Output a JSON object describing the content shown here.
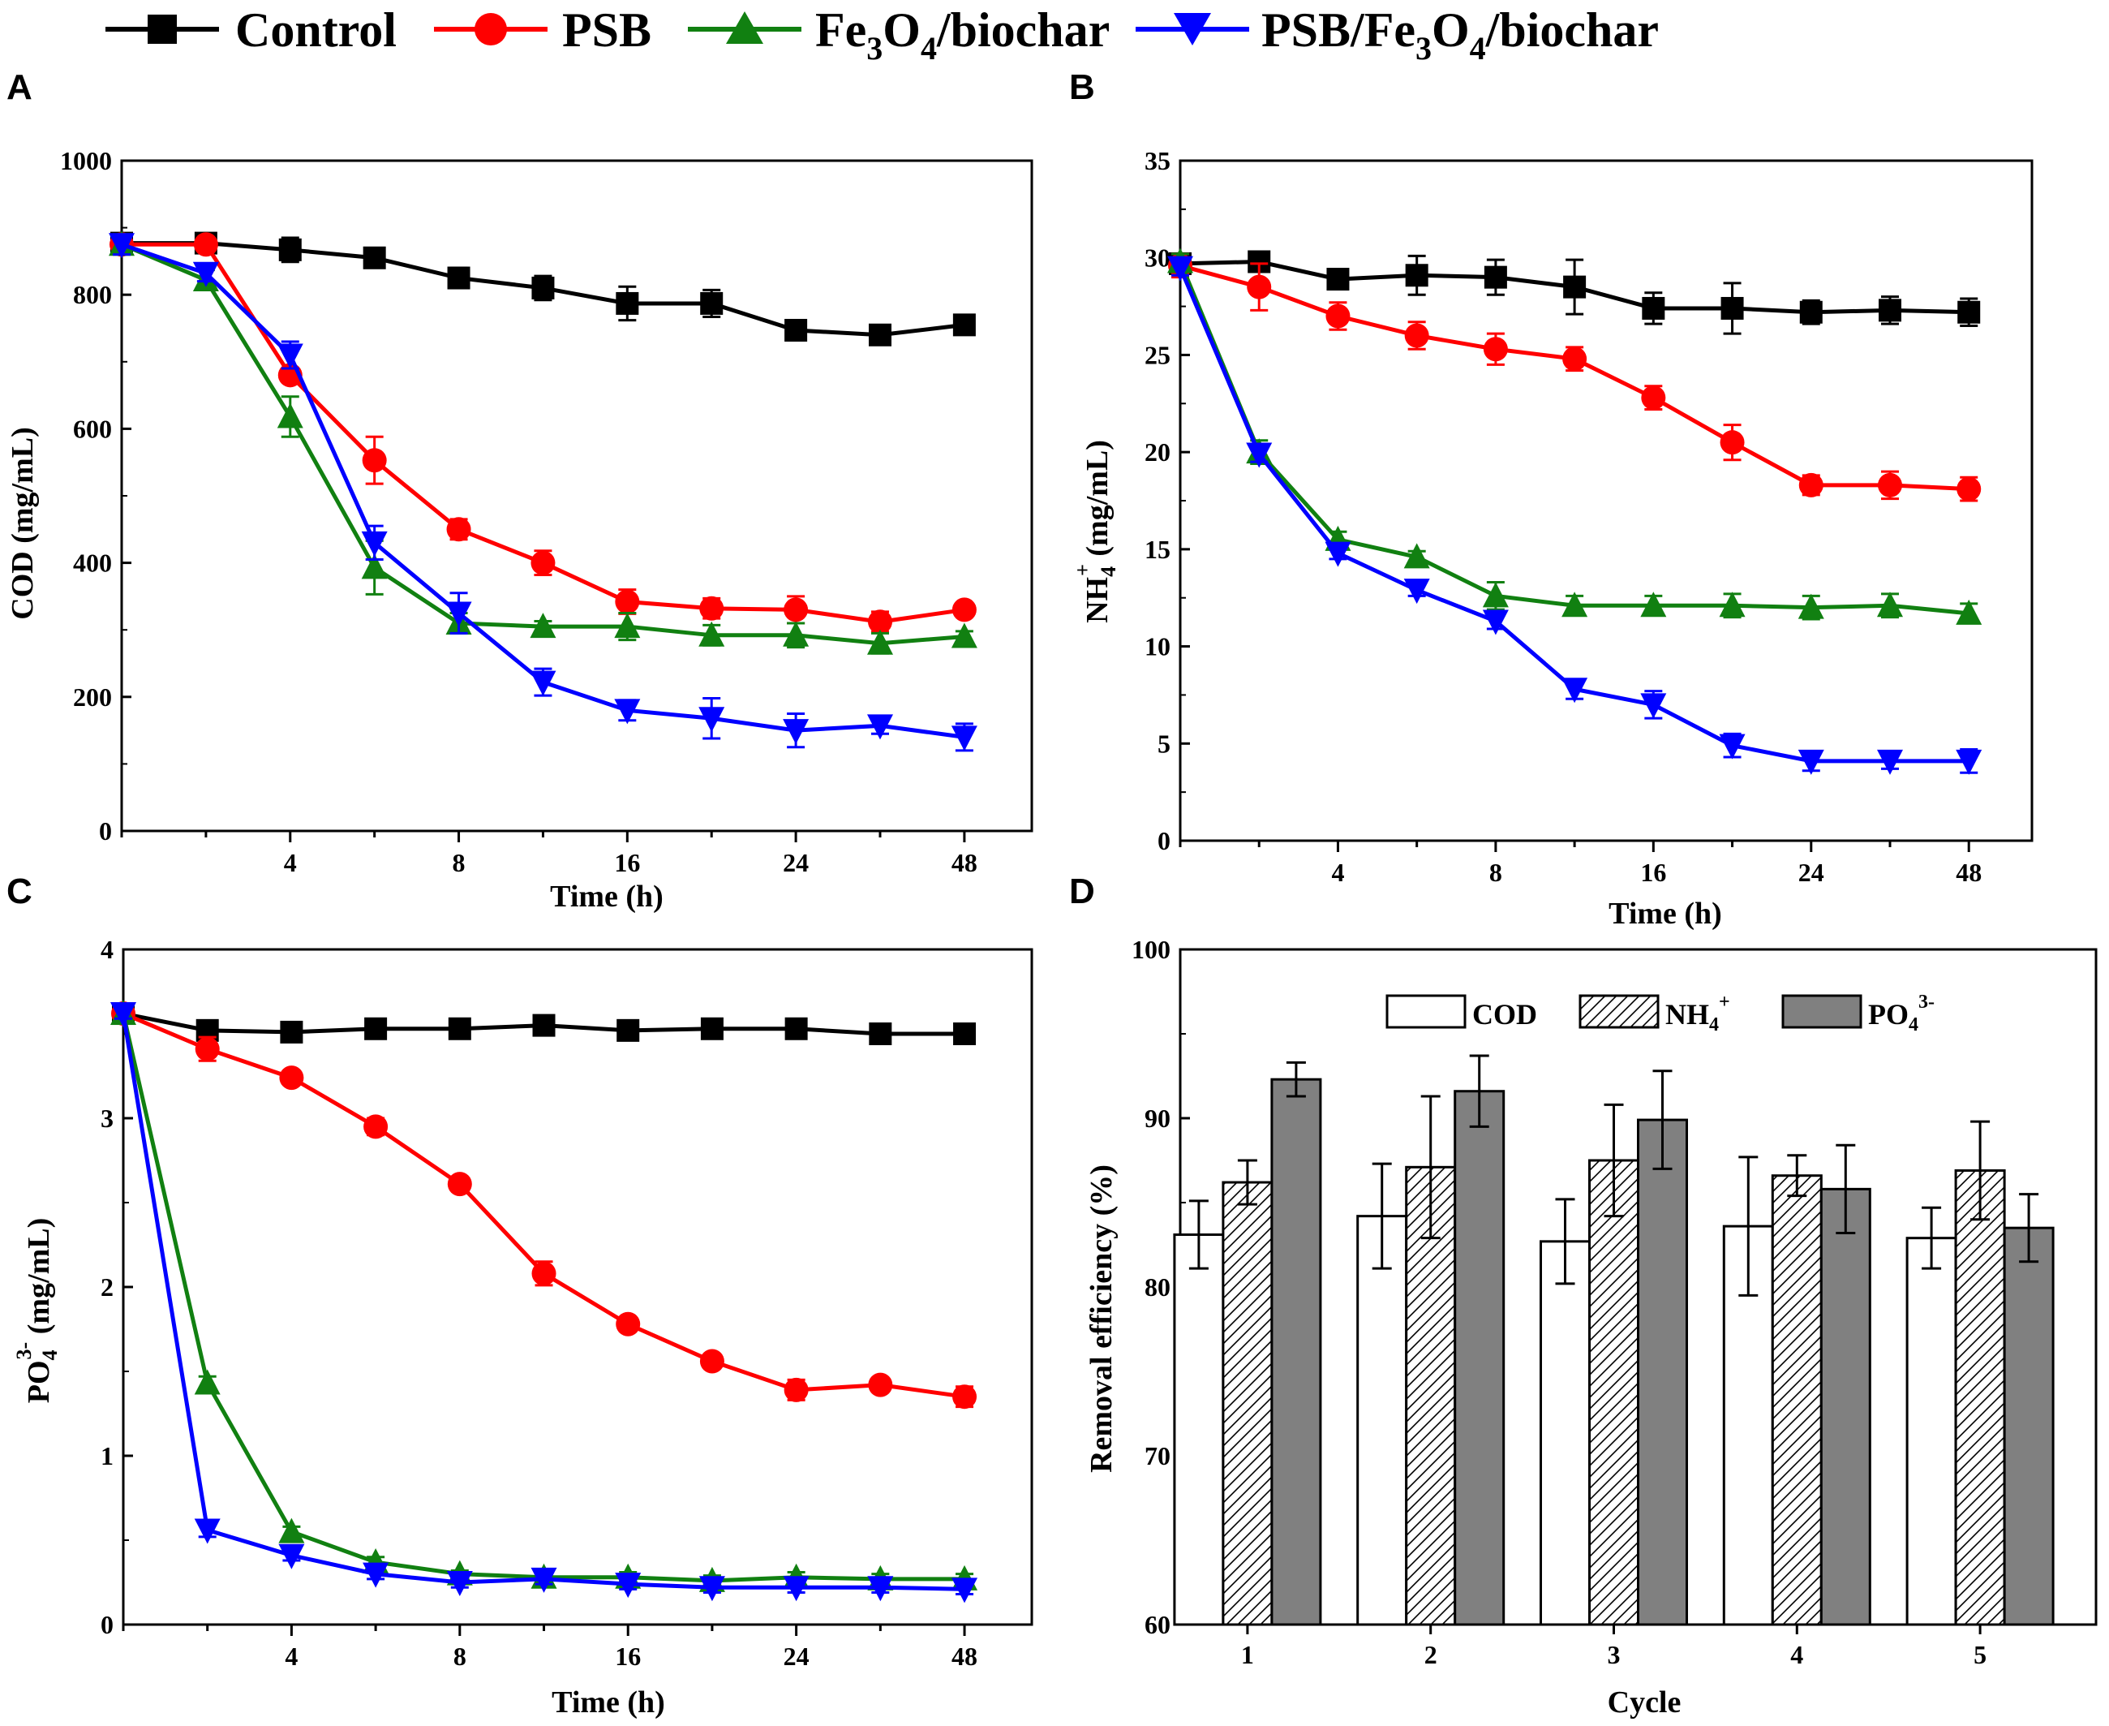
{
  "legend": {
    "series": [
      {
        "key": "control",
        "name": "Control",
        "color": "#000000",
        "marker": "square"
      },
      {
        "key": "psb",
        "name": "PSB",
        "color": "#ff0000",
        "marker": "circle"
      },
      {
        "key": "fe",
        "name": "Fe3O4/biochar",
        "main": "Fe",
        "sub1": "3",
        "mid": "O",
        "sub2": "4",
        "tail": "/biochar",
        "color": "#118011",
        "marker": "triangle-up"
      },
      {
        "key": "psbfe",
        "name": "PSB/Fe3O4/biochar",
        "main": "PSB/Fe",
        "sub1": "3",
        "mid": "O",
        "sub2": "4",
        "tail": "/biochar",
        "color": "#0000ff",
        "marker": "triangle-down"
      }
    ]
  },
  "chart_data": [
    {
      "panel": "A",
      "type": "line",
      "xlabel": "Time (h)",
      "ylabel": "COD (mg/mL)",
      "ylim": [
        0,
        1000
      ],
      "yticks": [
        0,
        200,
        400,
        600,
        800,
        1000
      ],
      "x": [
        0,
        2,
        4,
        6,
        8,
        12,
        16,
        20,
        24,
        30,
        48
      ],
      "xtick_labels": [
        "4",
        "8",
        "16",
        "24",
        "48"
      ],
      "xtick_positions": [
        2,
        4,
        6,
        8,
        10
      ],
      "series": [
        {
          "key": "control",
          "values": [
            877,
            877,
            867,
            855,
            825,
            810,
            787,
            787,
            747,
            740,
            755
          ],
          "errors": [
            12,
            12,
            18,
            10,
            15,
            18,
            25,
            20,
            15,
            12,
            10
          ]
        },
        {
          "key": "psb",
          "values": [
            875,
            875,
            680,
            553,
            450,
            400,
            342,
            332,
            330,
            312,
            330
          ],
          "errors": [
            10,
            10,
            10,
            35,
            15,
            18,
            18,
            15,
            20,
            15,
            8
          ]
        },
        {
          "key": "fe",
          "values": [
            875,
            822,
            618,
            393,
            310,
            305,
            305,
            292,
            292,
            280,
            290
          ],
          "errors": [
            15,
            15,
            30,
            40,
            15,
            8,
            20,
            15,
            18,
            15,
            8
          ]
        },
        {
          "key": "psbfe",
          "values": [
            875,
            832,
            710,
            430,
            325,
            222,
            180,
            168,
            150,
            157,
            140
          ],
          "errors": [
            15,
            12,
            20,
            25,
            30,
            20,
            15,
            30,
            25,
            12,
            20
          ]
        }
      ]
    },
    {
      "panel": "B",
      "type": "line",
      "xlabel": "Time (h)",
      "ylabel": "NH4+ (mg/mL)",
      "ylabel_main": "NH",
      "ylabel_sub": "4",
      "ylabel_sup": "+",
      "ylabel_tail": " (mg/mL)",
      "ylim": [
        0,
        35
      ],
      "yticks": [
        0,
        5,
        10,
        15,
        20,
        25,
        30,
        35
      ],
      "x": [
        0,
        2,
        4,
        6,
        8,
        12,
        16,
        20,
        24,
        30,
        48
      ],
      "xtick_labels": [
        "4",
        "8",
        "16",
        "24",
        "48"
      ],
      "xtick_positions": [
        2,
        4,
        6,
        8,
        10
      ],
      "series": [
        {
          "key": "control",
          "values": [
            29.7,
            29.8,
            28.9,
            29.1,
            29.0,
            28.5,
            27.4,
            27.4,
            27.2,
            27.3,
            27.2
          ],
          "errors": [
            0.3,
            0.5,
            0.5,
            1.0,
            0.9,
            1.4,
            0.8,
            1.3,
            0.6,
            0.7,
            0.7
          ]
        },
        {
          "key": "psb",
          "values": [
            29.6,
            28.5,
            27.0,
            26.0,
            25.3,
            24.8,
            22.8,
            20.5,
            18.3,
            18.3,
            18.1
          ],
          "errors": [
            0.6,
            1.2,
            0.7,
            0.7,
            0.8,
            0.6,
            0.6,
            0.9,
            0.5,
            0.7,
            0.6
          ]
        },
        {
          "key": "fe",
          "values": [
            29.8,
            20.0,
            15.5,
            14.6,
            12.6,
            12.1,
            12.1,
            12.1,
            12.0,
            12.1,
            11.7
          ],
          "errors": [
            0.4,
            0.6,
            0.4,
            0.3,
            0.7,
            0.5,
            0.5,
            0.6,
            0.6,
            0.6,
            0.5
          ]
        },
        {
          "key": "psbfe",
          "values": [
            29.5,
            19.9,
            14.8,
            12.9,
            11.3,
            7.8,
            7.0,
            4.9,
            4.1,
            4.1,
            4.1
          ],
          "errors": [
            0.4,
            0.4,
            0.3,
            0.3,
            0.4,
            0.5,
            0.7,
            0.6,
            0.5,
            0.4,
            0.6
          ]
        }
      ]
    },
    {
      "panel": "C",
      "type": "line",
      "xlabel": "Time (h)",
      "ylabel": "PO43- (mg/mL)",
      "ylabel_main": "PO",
      "ylabel_sub": "4",
      "ylabel_sup": "3-",
      "ylabel_tail": " (mg/mL)",
      "ylim": [
        0,
        4
      ],
      "yticks": [
        0,
        1,
        2,
        3,
        4
      ],
      "x": [
        0,
        2,
        4,
        6,
        8,
        12,
        16,
        20,
        24,
        30,
        48
      ],
      "xtick_labels": [
        "4",
        "8",
        "16",
        "24",
        "48"
      ],
      "xtick_positions": [
        2,
        4,
        6,
        8,
        10
      ],
      "series": [
        {
          "key": "control",
          "values": [
            3.62,
            3.52,
            3.51,
            3.53,
            3.53,
            3.55,
            3.52,
            3.53,
            3.53,
            3.5,
            3.5
          ],
          "errors": [
            0.03,
            0.04,
            0.04,
            0.04,
            0.05,
            0.04,
            0.04,
            0.04,
            0.04,
            0.04,
            0.06
          ]
        },
        {
          "key": "psb",
          "values": [
            3.62,
            3.41,
            3.24,
            2.95,
            2.61,
            2.08,
            1.78,
            1.56,
            1.39,
            1.42,
            1.35
          ],
          "errors": [
            0.03,
            0.07,
            0.04,
            0.05,
            0.04,
            0.07,
            0.04,
            0.04,
            0.06,
            0.04,
            0.06
          ]
        },
        {
          "key": "fe",
          "values": [
            3.62,
            1.43,
            0.55,
            0.37,
            0.3,
            0.28,
            0.28,
            0.26,
            0.28,
            0.27,
            0.27
          ],
          "errors": [
            0.03,
            0.04,
            0.03,
            0.03,
            0.02,
            0.03,
            0.03,
            0.03,
            0.03,
            0.03,
            0.03
          ]
        },
        {
          "key": "psbfe",
          "values": [
            3.62,
            0.56,
            0.41,
            0.3,
            0.25,
            0.27,
            0.24,
            0.22,
            0.22,
            0.22,
            0.21
          ],
          "errors": [
            0.03,
            0.04,
            0.03,
            0.03,
            0.03,
            0.03,
            0.03,
            0.03,
            0.03,
            0.03,
            0.03
          ]
        }
      ]
    },
    {
      "panel": "D",
      "type": "bar",
      "xlabel": "Cycle",
      "ylabel": "Removal efficiency (%)",
      "ylim": [
        60,
        100
      ],
      "yticks": [
        60,
        70,
        80,
        90,
        100
      ],
      "categories": [
        "1",
        "2",
        "3",
        "4",
        "5"
      ],
      "series": [
        {
          "name": "COD",
          "fill": "#ffffff",
          "values": [
            83.1,
            84.2,
            82.7,
            83.6,
            82.9
          ],
          "errors": [
            2.0,
            3.1,
            2.5,
            4.1,
            1.8
          ]
        },
        {
          "name": "NH4+",
          "main": "NH",
          "sub": "4",
          "sup": "+",
          "fill": "hatch",
          "values": [
            86.2,
            87.1,
            87.5,
            86.6,
            86.9
          ],
          "errors": [
            1.3,
            4.2,
            3.3,
            1.2,
            2.9
          ]
        },
        {
          "name": "PO43-",
          "main": "PO",
          "sub": "4",
          "sup": "3-",
          "fill": "#808080",
          "values": [
            92.3,
            91.6,
            89.9,
            85.8,
            83.5
          ],
          "errors": [
            1.0,
            2.1,
            2.9,
            2.6,
            2.0
          ]
        }
      ]
    }
  ],
  "panel_labels": [
    "A",
    "B",
    "C",
    "D"
  ]
}
